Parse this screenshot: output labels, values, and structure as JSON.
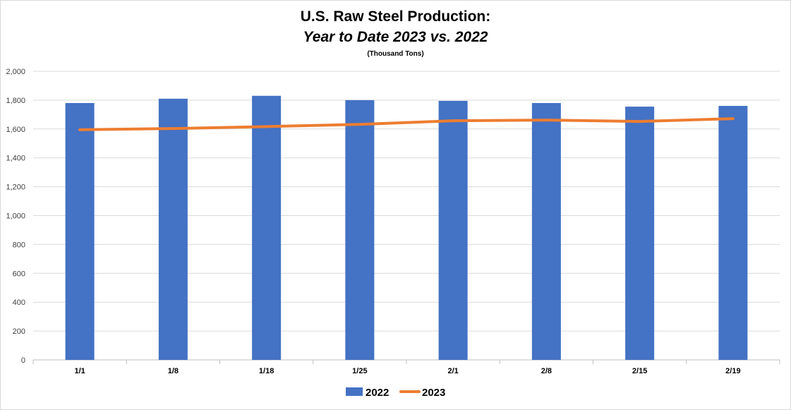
{
  "chart_data": {
    "type": "bar",
    "title": "U.S. Raw Steel Production:",
    "subtitle": "Year to Date 2023 vs. 2022",
    "unit_note": "(Thousand Tons)",
    "categories": [
      "1/1",
      "1/8",
      "1/18",
      "1/25",
      "2/1",
      "2/8",
      "2/15",
      "2/19"
    ],
    "series": [
      {
        "name": "2022",
        "type": "bar",
        "color": "#4472c4",
        "values": [
          1780,
          1810,
          1830,
          1800,
          1795,
          1780,
          1755,
          1760
        ]
      },
      {
        "name": "2023",
        "type": "line",
        "color": "#ed7d31",
        "values": [
          1595,
          1603,
          1617,
          1632,
          1657,
          1662,
          1652,
          1672
        ]
      }
    ],
    "ylim": [
      0,
      2000
    ],
    "yticks": [
      "0",
      "200",
      "400",
      "600",
      "800",
      "1,000",
      "1,200",
      "1,400",
      "1,600",
      "1,800",
      "2,000"
    ],
    "grid": true,
    "legend": "bottom"
  }
}
